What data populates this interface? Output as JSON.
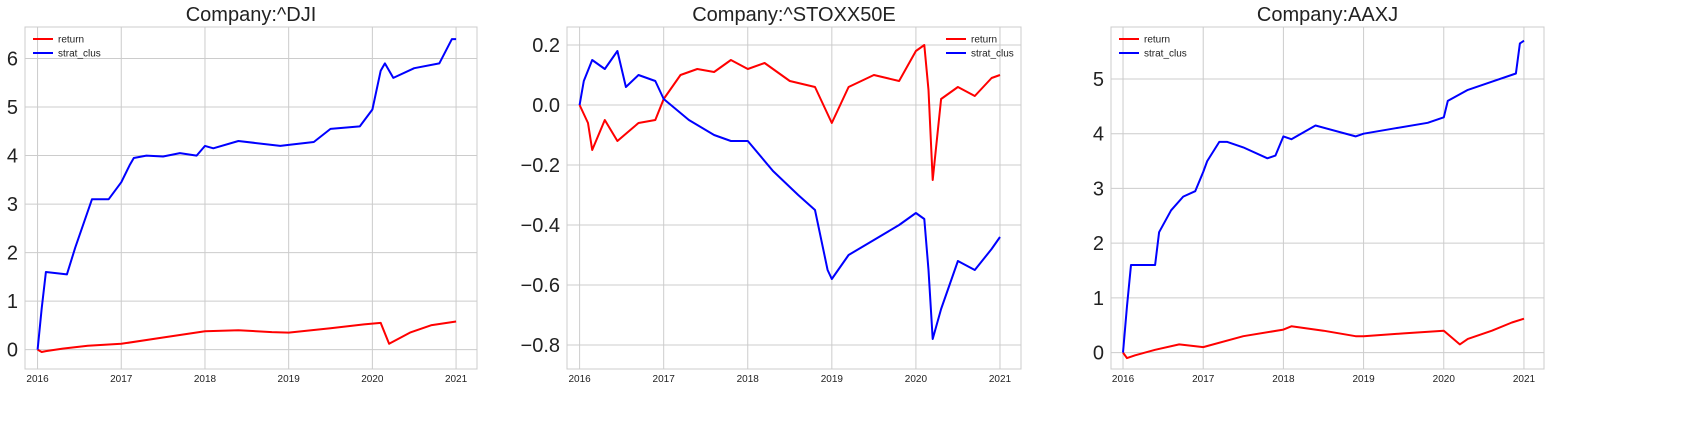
{
  "chart_data": [
    {
      "type": "line",
      "title": "Company:^DJI",
      "xlabel": "",
      "ylabel": "",
      "xlim": [
        2015.85,
        2021.25
      ],
      "ylim": [
        -0.4,
        6.65
      ],
      "x_ticks": [
        "2016",
        "2017",
        "2018",
        "2019",
        "2020",
        "2021"
      ],
      "y_ticks": [
        "0",
        "1",
        "2",
        "3",
        "4",
        "5",
        "6"
      ],
      "y_tick_values": [
        0,
        1,
        2,
        3,
        4,
        5,
        6
      ],
      "grid": true,
      "legend_position": "top-left",
      "series": [
        {
          "name": "return",
          "color": "#ff0000",
          "x": [
            2016.0,
            2016.05,
            2016.1,
            2016.3,
            2016.6,
            2017.0,
            2017.5,
            2018.0,
            2018.4,
            2018.8,
            2019.0,
            2019.5,
            2019.9,
            2020.1,
            2020.2,
            2020.45,
            2020.7,
            2021.0
          ],
          "y": [
            0.0,
            -0.05,
            -0.03,
            0.02,
            0.08,
            0.12,
            0.25,
            0.38,
            0.4,
            0.36,
            0.35,
            0.44,
            0.52,
            0.55,
            0.12,
            0.35,
            0.5,
            0.58
          ]
        },
        {
          "name": "strat_clus",
          "color": "#0000ff",
          "x": [
            2016.0,
            2016.05,
            2016.1,
            2016.35,
            2016.45,
            2016.65,
            2016.85,
            2017.0,
            2017.1,
            2017.15,
            2017.3,
            2017.5,
            2017.7,
            2017.9,
            2018.0,
            2018.1,
            2018.4,
            2018.9,
            2019.0,
            2019.3,
            2019.5,
            2019.85,
            2020.0,
            2020.1,
            2020.15,
            2020.25,
            2020.5,
            2020.8,
            2020.95,
            2021.0
          ],
          "y": [
            0.0,
            0.85,
            1.6,
            1.55,
            2.1,
            3.1,
            3.1,
            3.45,
            3.8,
            3.95,
            4.0,
            3.98,
            4.05,
            4.0,
            4.2,
            4.15,
            4.3,
            4.2,
            4.22,
            4.28,
            4.55,
            4.6,
            4.95,
            5.75,
            5.9,
            5.6,
            5.8,
            5.9,
            6.4,
            6.4
          ]
        }
      ]
    },
    {
      "type": "line",
      "title": "Company:^STOXX50E",
      "xlabel": "",
      "ylabel": "",
      "xlim": [
        2015.85,
        2021.25
      ],
      "ylim": [
        -0.88,
        0.26
      ],
      "x_ticks": [
        "2016",
        "2017",
        "2018",
        "2019",
        "2020",
        "2021"
      ],
      "y_ticks": [
        "0.2",
        "0.0",
        "−0.2",
        "−0.4",
        "−0.6",
        "−0.8"
      ],
      "y_tick_values": [
        0.2,
        0.0,
        -0.2,
        -0.4,
        -0.6,
        -0.8
      ],
      "grid": true,
      "legend_position": "top-right",
      "series": [
        {
          "name": "return",
          "color": "#ff0000",
          "x": [
            2016.0,
            2016.1,
            2016.15,
            2016.3,
            2016.45,
            2016.7,
            2016.9,
            2017.0,
            2017.2,
            2017.4,
            2017.6,
            2017.8,
            2018.0,
            2018.2,
            2018.5,
            2018.8,
            2018.95,
            2019.0,
            2019.2,
            2019.5,
            2019.8,
            2020.0,
            2020.1,
            2020.15,
            2020.2,
            2020.3,
            2020.5,
            2020.7,
            2020.9,
            2021.0
          ],
          "y": [
            0.0,
            -0.06,
            -0.15,
            -0.05,
            -0.12,
            -0.06,
            -0.05,
            0.02,
            0.1,
            0.12,
            0.11,
            0.15,
            0.12,
            0.14,
            0.08,
            0.06,
            -0.03,
            -0.06,
            0.06,
            0.1,
            0.08,
            0.18,
            0.2,
            0.05,
            -0.25,
            0.02,
            0.06,
            0.03,
            0.09,
            0.1
          ]
        },
        {
          "name": "strat_clus",
          "color": "#0000ff",
          "x": [
            2016.0,
            2016.05,
            2016.15,
            2016.3,
            2016.45,
            2016.55,
            2016.7,
            2016.9,
            2017.0,
            2017.3,
            2017.6,
            2017.8,
            2018.0,
            2018.3,
            2018.6,
            2018.8,
            2018.95,
            2019.0,
            2019.2,
            2019.5,
            2019.8,
            2020.0,
            2020.1,
            2020.15,
            2020.2,
            2020.3,
            2020.5,
            2020.7,
            2020.9,
            2021.0
          ],
          "y": [
            0.0,
            0.08,
            0.15,
            0.12,
            0.18,
            0.06,
            0.1,
            0.08,
            0.02,
            -0.05,
            -0.1,
            -0.12,
            -0.12,
            -0.22,
            -0.3,
            -0.35,
            -0.55,
            -0.58,
            -0.5,
            -0.45,
            -0.4,
            -0.36,
            -0.38,
            -0.55,
            -0.78,
            -0.68,
            -0.52,
            -0.55,
            -0.48,
            -0.44
          ]
        }
      ]
    },
    {
      "type": "line",
      "title": "Company:AAXJ",
      "xlabel": "",
      "ylabel": "",
      "xlim": [
        2015.85,
        2021.25
      ],
      "ylim": [
        -0.3,
        5.95
      ],
      "x_ticks": [
        "2016",
        "2017",
        "2018",
        "2019",
        "2020",
        "2021"
      ],
      "y_ticks": [
        "0",
        "1",
        "2",
        "3",
        "4",
        "5"
      ],
      "y_tick_values": [
        0,
        1,
        2,
        3,
        4,
        5
      ],
      "grid": true,
      "legend_position": "top-left",
      "series": [
        {
          "name": "return",
          "color": "#ff0000",
          "x": [
            2016.0,
            2016.05,
            2016.15,
            2016.4,
            2016.7,
            2017.0,
            2017.5,
            2018.0,
            2018.1,
            2018.5,
            2018.9,
            2019.0,
            2019.5,
            2020.0,
            2020.2,
            2020.3,
            2020.6,
            2020.85,
            2021.0
          ],
          "y": [
            0.0,
            -0.1,
            -0.05,
            0.05,
            0.15,
            0.1,
            0.3,
            0.42,
            0.48,
            0.4,
            0.3,
            0.3,
            0.35,
            0.4,
            0.15,
            0.25,
            0.4,
            0.55,
            0.62
          ]
        },
        {
          "name": "strat_clus",
          "color": "#0000ff",
          "x": [
            2016.0,
            2016.05,
            2016.1,
            2016.4,
            2016.45,
            2016.6,
            2016.75,
            2016.9,
            2017.0,
            2017.05,
            2017.2,
            2017.3,
            2017.5,
            2017.8,
            2017.9,
            2018.0,
            2018.1,
            2018.4,
            2018.9,
            2019.0,
            2019.4,
            2019.8,
            2020.0,
            2020.05,
            2020.3,
            2020.6,
            2020.9,
            2020.95,
            2021.0
          ],
          "y": [
            0.0,
            0.85,
            1.6,
            1.6,
            2.2,
            2.6,
            2.85,
            2.95,
            3.3,
            3.5,
            3.85,
            3.85,
            3.75,
            3.55,
            3.6,
            3.95,
            3.9,
            4.15,
            3.95,
            4.0,
            4.1,
            4.2,
            4.3,
            4.6,
            4.8,
            4.95,
            5.1,
            5.65,
            5.7
          ]
        }
      ]
    }
  ]
}
